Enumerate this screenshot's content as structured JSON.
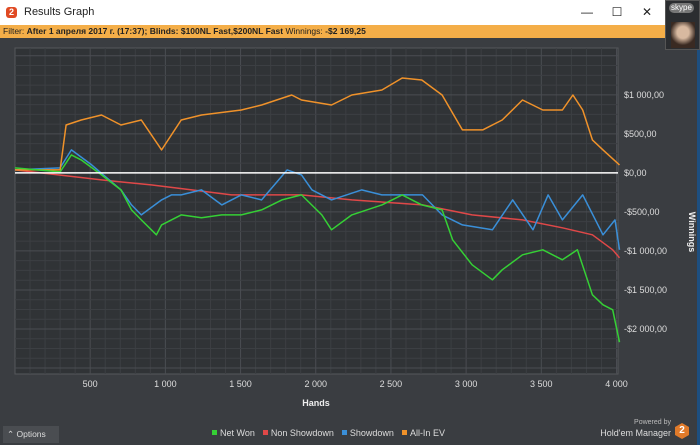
{
  "window": {
    "title": "Results Graph",
    "minimize": "—",
    "maximize": "☐",
    "close": "✕"
  },
  "filter": {
    "label": "Filter:",
    "value": "After 1 апреля 2017 г. (17:37); Blinds: $100NL Fast,$200NL Fast",
    "winnings_label": "Winnings:",
    "winnings_value": "-$2 169,25"
  },
  "overlay": {
    "skype": "skype"
  },
  "options_label": "Options",
  "powered": {
    "line1": "Powered by",
    "line2": "Hold'em Manager",
    "logo": "2"
  },
  "colors": {
    "net_won": "#35d035",
    "non_showdown": "#e04848",
    "showdown": "#3a8fd8",
    "all_in_ev": "#f0922a"
  },
  "chart_data": {
    "type": "line",
    "xlabel": "Hands",
    "ylabel": "Winnings",
    "xlim": [
      0,
      4010
    ],
    "ylim": [
      -2577,
      1600
    ],
    "xticks": [
      500,
      1000,
      1500,
      2000,
      2500,
      3000,
      3500,
      4000
    ],
    "xtick_labels": [
      "500",
      "1 000",
      "1 500",
      "2 000",
      "2 500",
      "3 000",
      "3 500",
      "4 000"
    ],
    "yticks": [
      1000,
      500,
      0,
      -500,
      -1000,
      -1500,
      -2000
    ],
    "ytick_labels": [
      "$1 000,00",
      "$500,00",
      "$0,00",
      "-$500,00",
      "-$1 000,00",
      "-$1 500,00",
      "-$2 000,00"
    ],
    "grid": true,
    "legend": "bottom",
    "series": [
      {
        "name": "Net Won",
        "key": "net_won",
        "points": [
          [
            0,
            64
          ],
          [
            300,
            13
          ],
          [
            375,
            230
          ],
          [
            440,
            166
          ],
          [
            575,
            -26
          ],
          [
            705,
            -218
          ],
          [
            775,
            -474
          ],
          [
            840,
            -602
          ],
          [
            940,
            -794
          ],
          [
            975,
            -666
          ],
          [
            1105,
            -538
          ],
          [
            1240,
            -576
          ],
          [
            1375,
            -538
          ],
          [
            1505,
            -538
          ],
          [
            1640,
            -474
          ],
          [
            1775,
            -346
          ],
          [
            1905,
            -282
          ],
          [
            2040,
            -538
          ],
          [
            2105,
            -730
          ],
          [
            2240,
            -538
          ],
          [
            2440,
            -410
          ],
          [
            2575,
            -282
          ],
          [
            2705,
            -410
          ],
          [
            2840,
            -474
          ],
          [
            2910,
            -858
          ],
          [
            3040,
            -1178
          ],
          [
            3175,
            -1370
          ],
          [
            3240,
            -1242
          ],
          [
            3375,
            -1050
          ],
          [
            3510,
            -986
          ],
          [
            3640,
            -1114
          ],
          [
            3740,
            -986
          ],
          [
            3840,
            -1562
          ],
          [
            3910,
            -1690
          ],
          [
            3975,
            -1754
          ],
          [
            4020,
            -2169
          ]
        ]
      },
      {
        "name": "Non Showdown",
        "key": "non_showdown",
        "points": [
          [
            0,
            38
          ],
          [
            575,
            -90
          ],
          [
            905,
            -154
          ],
          [
            1175,
            -218
          ],
          [
            1440,
            -282
          ],
          [
            1905,
            -282
          ],
          [
            2240,
            -346
          ],
          [
            2710,
            -410
          ],
          [
            3040,
            -538
          ],
          [
            3375,
            -602
          ],
          [
            3640,
            -704
          ],
          [
            3840,
            -794
          ],
          [
            3975,
            -986
          ],
          [
            4020,
            -1088
          ]
        ]
      },
      {
        "name": "Showdown",
        "key": "showdown",
        "points": [
          [
            0,
            38
          ],
          [
            300,
            64
          ],
          [
            375,
            294
          ],
          [
            510,
            102
          ],
          [
            705,
            -218
          ],
          [
            775,
            -410
          ],
          [
            840,
            -538
          ],
          [
            975,
            -346
          ],
          [
            1040,
            -282
          ],
          [
            1105,
            -282
          ],
          [
            1240,
            -218
          ],
          [
            1375,
            -410
          ],
          [
            1505,
            -282
          ],
          [
            1640,
            -346
          ],
          [
            1810,
            38
          ],
          [
            1905,
            -26
          ],
          [
            1975,
            -218
          ],
          [
            2105,
            -346
          ],
          [
            2305,
            -218
          ],
          [
            2440,
            -282
          ],
          [
            2710,
            -282
          ],
          [
            2840,
            -538
          ],
          [
            2975,
            -666
          ],
          [
            3175,
            -730
          ],
          [
            3310,
            -346
          ],
          [
            3445,
            -730
          ],
          [
            3545,
            -282
          ],
          [
            3640,
            -602
          ],
          [
            3775,
            -282
          ],
          [
            3910,
            -794
          ],
          [
            3990,
            -602
          ],
          [
            4020,
            -986
          ]
        ]
      },
      {
        "name": "All-In EV",
        "key": "all_in_ev",
        "points": [
          [
            0,
            38
          ],
          [
            300,
            38
          ],
          [
            340,
            614
          ],
          [
            440,
            678
          ],
          [
            575,
            742
          ],
          [
            705,
            614
          ],
          [
            840,
            678
          ],
          [
            975,
            294
          ],
          [
            1105,
            678
          ],
          [
            1240,
            742
          ],
          [
            1505,
            806
          ],
          [
            1640,
            870
          ],
          [
            1840,
            998
          ],
          [
            1905,
            934
          ],
          [
            2105,
            870
          ],
          [
            2240,
            998
          ],
          [
            2440,
            1062
          ],
          [
            2575,
            1216
          ],
          [
            2705,
            1190
          ],
          [
            2840,
            998
          ],
          [
            2975,
            550
          ],
          [
            3110,
            550
          ],
          [
            3240,
            678
          ],
          [
            3375,
            934
          ],
          [
            3510,
            806
          ],
          [
            3640,
            806
          ],
          [
            3710,
            998
          ],
          [
            3775,
            806
          ],
          [
            3840,
            422
          ],
          [
            3910,
            294
          ],
          [
            4020,
            102
          ]
        ]
      }
    ]
  }
}
